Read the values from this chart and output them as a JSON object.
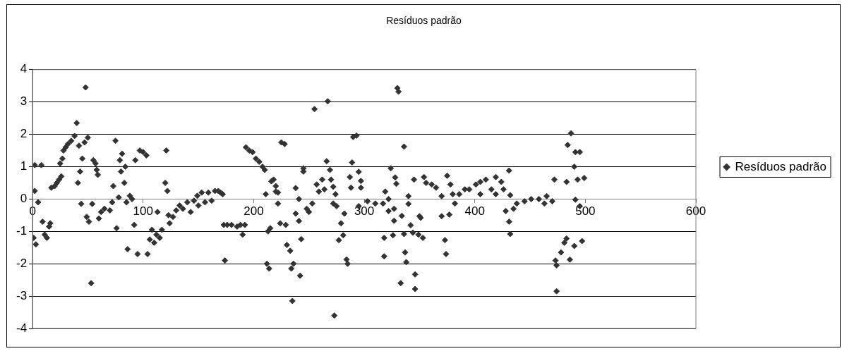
{
  "chart_data": {
    "type": "scatter",
    "title": "Resíduos padrão",
    "xlim": [
      0,
      600
    ],
    "xticks": [
      0,
      100,
      200,
      300,
      400,
      500,
      600
    ],
    "ylim": [
      -4,
      4
    ],
    "yticks": [
      -4,
      -3,
      -2,
      -1,
      0,
      1,
      2,
      3,
      4
    ],
    "grid": "y",
    "legend": "right",
    "marker": "diamond",
    "series": [
      {
        "name": "Resíduos padrão",
        "color": "#333333",
        "x": [
          1,
          2,
          2,
          3,
          5,
          8,
          9,
          11,
          13,
          15,
          16,
          17,
          20,
          22,
          24,
          26,
          25,
          27,
          28,
          30,
          32,
          35,
          38,
          40,
          41,
          42,
          43,
          44,
          45,
          47,
          48,
          50,
          49,
          51,
          53,
          54,
          55,
          57,
          58,
          59,
          60,
          62,
          65,
          70,
          72,
          73,
          75,
          76,
          78,
          79,
          80,
          81,
          83,
          84,
          85,
          86,
          88,
          90,
          92,
          93,
          95,
          97,
          100,
          103,
          104,
          106,
          108,
          110,
          112,
          113,
          115,
          117,
          120,
          121,
          122,
          123,
          124,
          127,
          130,
          133,
          136,
          140,
          143,
          146,
          149,
          150,
          153,
          156,
          159,
          162,
          165,
          168,
          170,
          172,
          173,
          174,
          176,
          180,
          185,
          188,
          190,
          192,
          193,
          196,
          199,
          202,
          205,
          208,
          210,
          211,
          213,
          212,
          214,
          216,
          218,
          220,
          222,
          224,
          225,
          228,
          215,
          220,
          222,
          229,
          230,
          233,
          236,
          234,
          242,
          235,
          238,
          241,
          238,
          241,
          243,
          245,
          245,
          248,
          250,
          253,
          255,
          257,
          259,
          262,
          264,
          266,
          267,
          269,
          270,
          272,
          274,
          272,
          273,
          275,
          277,
          279,
          281,
          282,
          284,
          285,
          287,
          288,
          289,
          290,
          293,
          295,
          297,
          297,
          295,
          303,
          310,
          317,
          319,
          318,
          318,
          322,
          324,
          322,
          326,
          327,
          327,
          328,
          329,
          330,
          331,
          333,
          334,
          336,
          336,
          337,
          338,
          340,
          340,
          342,
          344,
          345,
          346,
          346,
          349,
          350,
          351,
          353,
          354,
          356,
          361,
          365,
          370,
          370,
          373,
          374,
          375,
          377,
          378,
          380,
          382,
          386,
          391,
          395,
          401,
          405,
          405,
          410,
          415,
          419,
          419,
          424,
          426,
          431,
          432,
          428,
          431,
          432,
          435,
          438,
          445,
          451,
          458,
          463,
          465,
          470,
          472,
          473,
          474,
          474,
          478,
          481,
          483,
          483,
          484,
          487,
          486,
          490,
          491,
          490,
          491,
          493,
          495,
          495,
          497,
          499
        ],
        "values": [
          -1.2,
          0.25,
          1.05,
          -1.4,
          -0.1,
          1.05,
          -0.7,
          -1.1,
          -1.2,
          -0.85,
          -0.75,
          0.35,
          0.4,
          0.5,
          0.6,
          0.7,
          1.1,
          1.25,
          1.5,
          1.6,
          1.7,
          1.8,
          1.95,
          2.35,
          0.5,
          1.65,
          0.85,
          -0.15,
          1.25,
          1.75,
          3.45,
          1.9,
          -0.55,
          -0.7,
          -2.6,
          -0.15,
          1.2,
          1.1,
          0.9,
          0.75,
          -0.6,
          -0.4,
          -0.3,
          -0.35,
          -0.1,
          0.4,
          1.8,
          -0.9,
          0.05,
          1.2,
          0.85,
          1.4,
          0.5,
          1.0,
          -0.1,
          -1.55,
          0.1,
          0.0,
          -0.8,
          1.2,
          -1.7,
          1.5,
          1.45,
          1.35,
          -1.7,
          -1.25,
          -0.95,
          -1.35,
          -1.1,
          -0.4,
          -1.2,
          -0.95,
          0.5,
          1.5,
          0.25,
          -0.5,
          -0.75,
          -0.55,
          -0.35,
          -0.2,
          -0.3,
          -0.1,
          -0.4,
          -0.05,
          0.1,
          -0.2,
          0.2,
          -0.1,
          0.2,
          -0.05,
          0.25,
          0.25,
          0.2,
          0.15,
          -0.8,
          -1.9,
          -0.8,
          -0.8,
          -0.85,
          -0.8,
          -1.1,
          -0.8,
          1.6,
          1.5,
          1.45,
          1.25,
          1.15,
          1.0,
          0.9,
          0.15,
          -1.0,
          -2.0,
          -2.15,
          0.55,
          0.6,
          0.4,
          0.2,
          -0.75,
          1.75,
          1.7,
          -0.9,
          0.23,
          -0.14,
          -0.8,
          -1.42,
          -1.6,
          -2.0,
          -2.15,
          -2.37,
          -3.15,
          0.34,
          0,
          -0.45,
          -0.68,
          -1.24,
          0.95,
          0.85,
          -0.3,
          -0.4,
          -0.14,
          2.78,
          0.45,
          0.23,
          0.6,
          0.3,
          1.17,
          3.02,
          0.9,
          0.6,
          0.38,
          0.15,
          -0.14,
          -3.6,
          -0.22,
          -1.27,
          -0.75,
          -1.12,
          -0.45,
          -1.87,
          -2.0,
          0.68,
          0.35,
          1.13,
          1.92,
          1.96,
          0.84,
          0.56,
          0.35,
          -0.22,
          -0.07,
          -0.14,
          -0.14,
          0.23,
          -1.2,
          -1.77,
          0,
          0.95,
          -0.37,
          -1.12,
          -0.3,
          -0.67,
          0.67,
          0.47,
          3.43,
          3.32,
          -2.6,
          -0.52,
          1.62,
          -1.08,
          -1.65,
          -1.95,
          0.09,
          -0.15,
          -0.81,
          -1.04,
          0.6,
          -2.33,
          -2.78,
          -1.1,
          -0.53,
          -0.58,
          -1.2,
          0.68,
          0.5,
          0.45,
          0.35,
          0.09,
          -0.53,
          -1.27,
          -1.7,
          0.72,
          -0.48,
          0.45,
          0.15,
          -0.14,
          0.15,
          0.3,
          0.3,
          0.45,
          0.53,
          0.15,
          0.6,
          0.3,
          0.68,
          0.15,
          0.53,
          0.3,
          0.88,
          0.12,
          -0.37,
          -0.7,
          -1.08,
          -0.3,
          -0.14,
          -0.07,
          0,
          0,
          -0.14,
          0.09,
          -0.07,
          0.6,
          -1.9,
          -2.05,
          -2.85,
          -1.65,
          -1.35,
          -1.22,
          0.53,
          1.67,
          2.03,
          -1.87,
          1.0,
          1.45,
          -1.45,
          -0.02,
          0.6,
          1.45,
          -0.22,
          -1.3,
          0.65
        ]
      }
    ]
  }
}
